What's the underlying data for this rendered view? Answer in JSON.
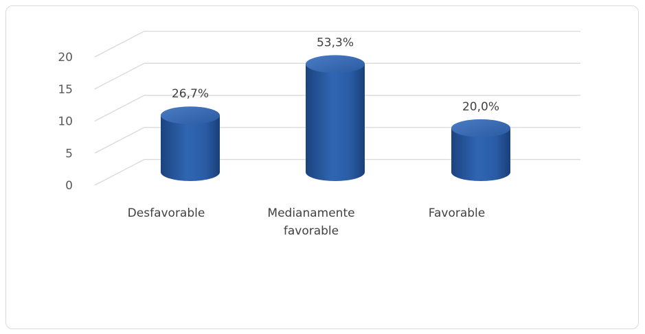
{
  "chart_data": {
    "type": "bar",
    "style": "3d-cylinder",
    "categories": [
      [
        "Desfavorable"
      ],
      [
        "Medianamente",
        "favorable"
      ],
      [
        "Favorable"
      ]
    ],
    "values": [
      8,
      16,
      6
    ],
    "data_labels": [
      "26,7%",
      "53,3%",
      "20,0%"
    ],
    "y_ticks": [
      "0",
      "5",
      "10",
      "15",
      "20"
    ],
    "ylim": [
      0,
      20
    ],
    "grid": true,
    "colors": {
      "bar": "#2e62ad",
      "bar_dark": "#1d4384",
      "bar_light": "#5b8bd0",
      "grid": "#d9d9d9",
      "axis_text": "#595959"
    }
  }
}
